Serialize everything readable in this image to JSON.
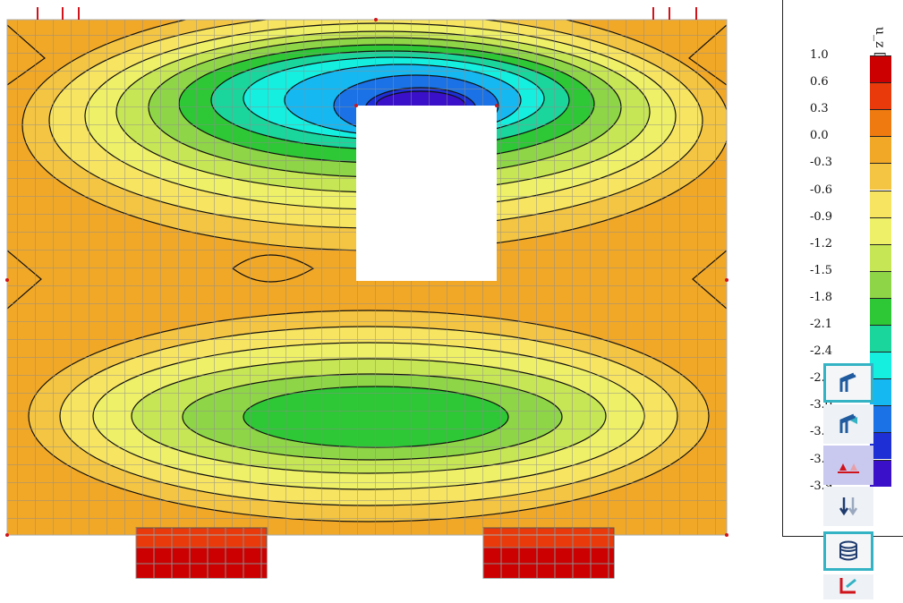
{
  "legend": {
    "unit": "u_z [mm]",
    "values": [
      "1.0",
      "0.6",
      "0.3",
      "0.0",
      "-0.3",
      "-0.6",
      "-0.9",
      "-1.2",
      "-1.5",
      "-1.8",
      "-2.1",
      "-2.4",
      "-2.7",
      "-3.0",
      "-3.3",
      "-3.6",
      "-3.9"
    ],
    "colors": [
      "#cc0000",
      "#e83a0a",
      "#ee7a10",
      "#f2a827",
      "#f4c542",
      "#f7e461",
      "#eef068",
      "#c7e655",
      "#8fd548",
      "#2ec735",
      "#1bd69c",
      "#15efe0",
      "#16b8f2",
      "#1a72e6",
      "#1e2fd6",
      "#3a10c8"
    ]
  },
  "toolbar": {
    "buttons": [
      {
        "name": "display-model-button",
        "active": true
      },
      {
        "name": "display-results-button",
        "active": false
      },
      {
        "name": "display-supports-button",
        "active": false
      },
      {
        "name": "display-loads-button",
        "active": false
      },
      {
        "name": "display-layers-button",
        "active": true
      },
      {
        "name": "display-members-button",
        "active": false
      }
    ]
  }
}
